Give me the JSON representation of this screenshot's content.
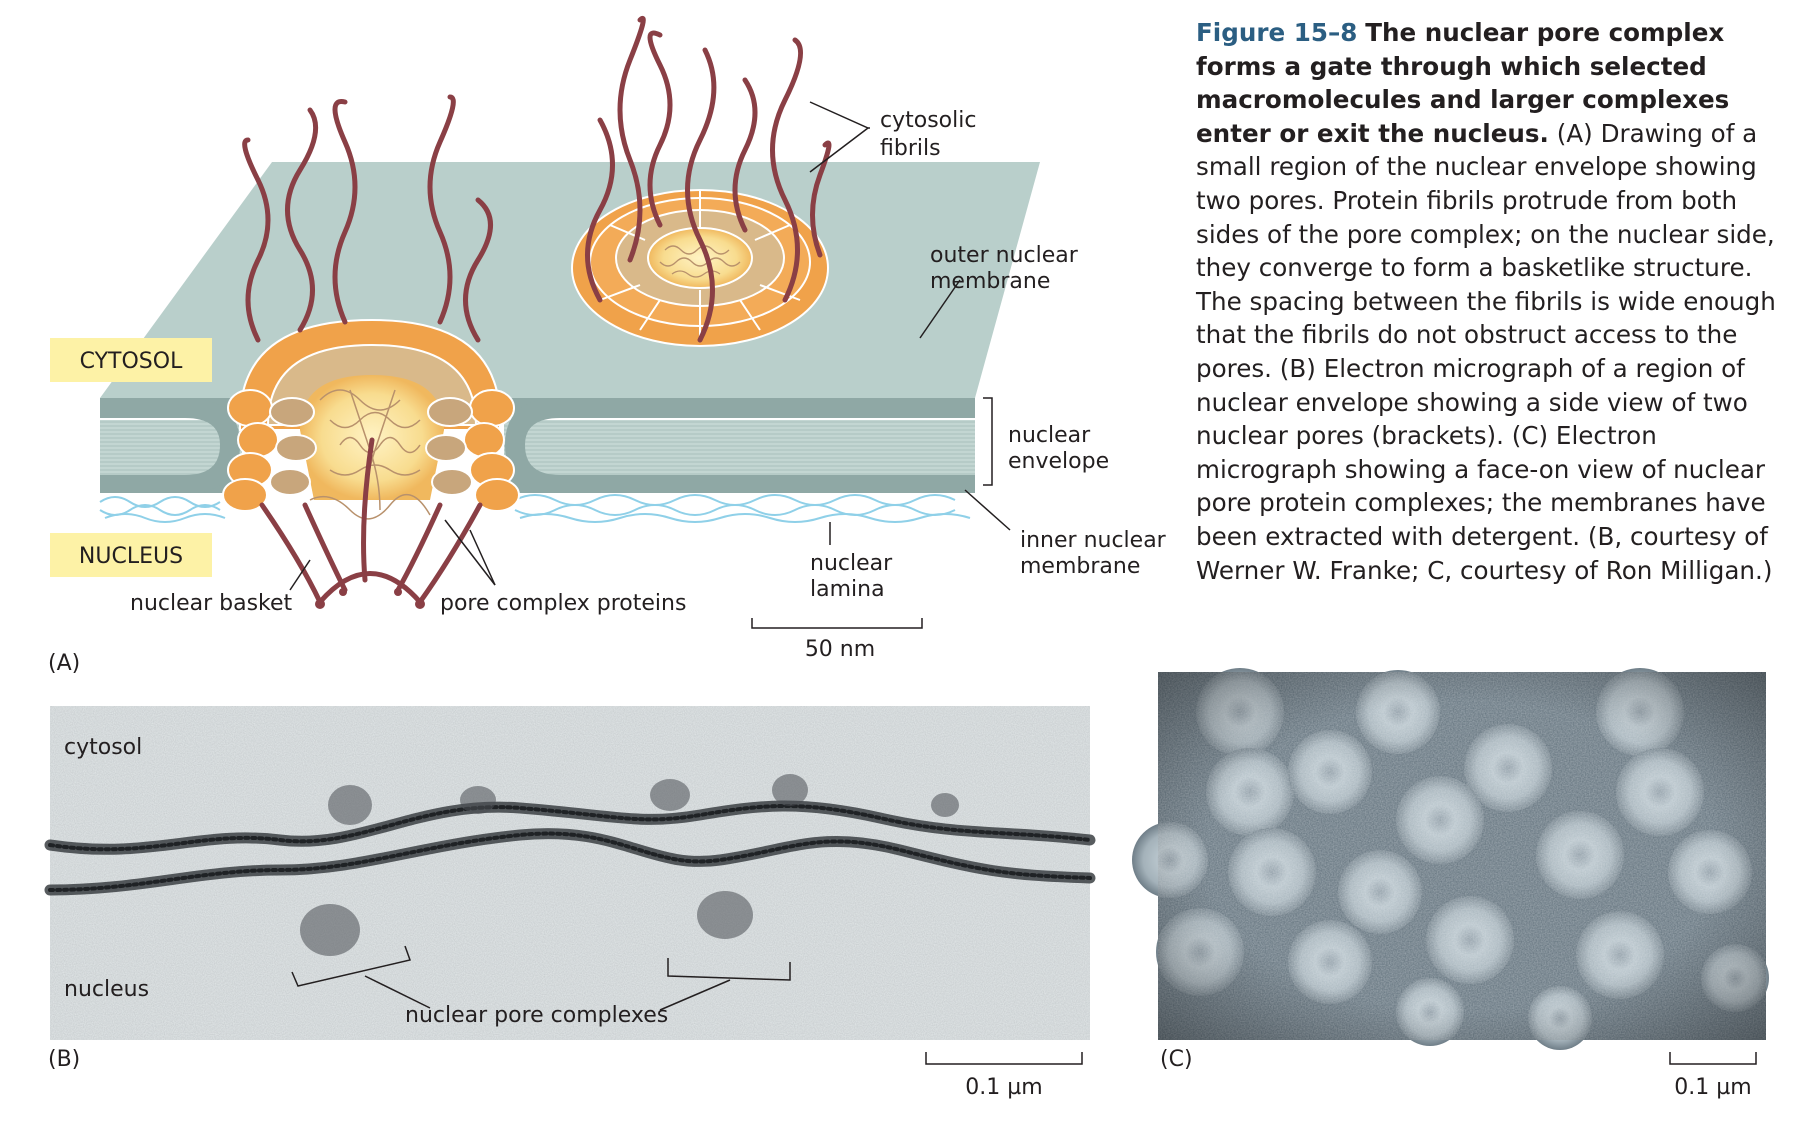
{
  "caption": {
    "figure_number": "Figure 15–8",
    "title": "The nuclear pore complex forms a gate through which selected macromolecules and larger complexes enter or exit the nucleus.",
    "body": "(A) Drawing of a small region of the nuclear envelope showing two pores. Protein fibrils protrude from both sides of the pore complex; on the nuclear side, they converge to form a basketlike structure. The spacing between the fibrils is wide enough that the fibrils do not obstruct access to the pores. (B) Electron micrograph of a region of nuclear envelope showing a side view of two nuclear pores (brackets). (C) Electron micrograph showing a face-on view of nuclear pore protein complexes; the membranes have been extracted with detergent. (B, courtesy of Werner W. Franke; C, courtesy of Ron Milligan.)"
  },
  "panel_a": {
    "panel_label": "(A)",
    "compartments": {
      "cytosol": "CYTOSOL",
      "nucleus": "NUCLEUS"
    },
    "labels": {
      "cytosolic_fibrils": [
        "cytosolic",
        "fibrils"
      ],
      "outer_nuclear_membrane": [
        "outer nuclear",
        "membrane"
      ],
      "nuclear_envelope": [
        "nuclear",
        "envelope"
      ],
      "inner_nuclear_membrane": [
        "inner nuclear",
        "membrane"
      ],
      "nuclear_lamina": [
        "nuclear",
        "lamina"
      ],
      "nuclear_basket": "nuclear basket",
      "pore_complex_proteins": "pore complex proteins"
    },
    "scale_bar": "50 nm",
    "colors": {
      "membrane": "#b9cfcb",
      "membrane_dark": "#8fa8a5",
      "fibril": "#8a3f45",
      "pore_orange": "#f0a24a",
      "pore_tan": "#d9b98a",
      "lamina": "#8fd0e8",
      "tag_bg": "#fdf2a6"
    }
  },
  "panel_b": {
    "panel_label": "(B)",
    "labels": {
      "cytosol": "cytosol",
      "nucleus": "nucleus",
      "nuclear_pore_complexes": "nuclear pore complexes"
    },
    "scale_bar": "0.1 µm"
  },
  "panel_c": {
    "panel_label": "(C)",
    "scale_bar": "0.1 µm"
  }
}
